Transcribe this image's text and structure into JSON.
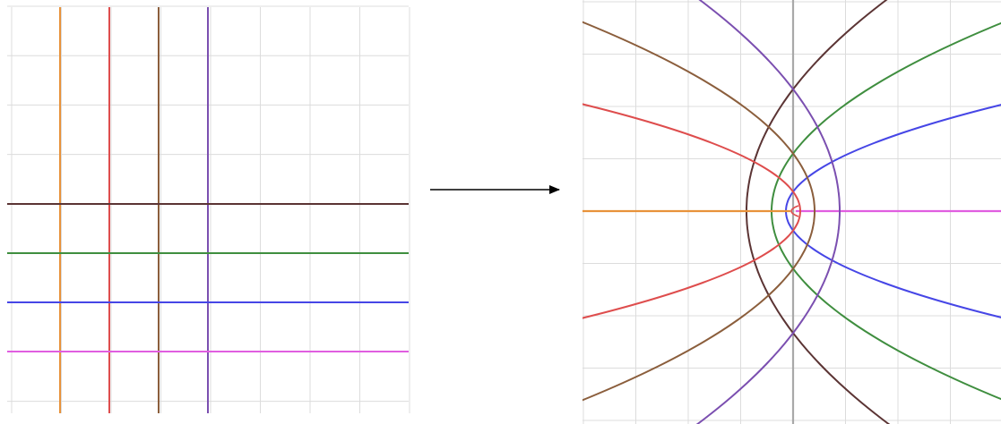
{
  "colors": {
    "background": "#ffffff",
    "grid": "#dcdcdc",
    "axis": "#a9a9a9",
    "arrow": "#000000",
    "orange": "#e8923a",
    "red": "#de4d4d",
    "brown": "#8b5e3c",
    "purple": "#7b4fb0",
    "dark": "#5b3434",
    "green": "#3f8e3f",
    "blue": "#4646e6",
    "magenta": "#e05ee0"
  },
  "diagram": {
    "description_type": "conformal mapping w = z^2 of a rectangular grid",
    "source_plane": {
      "vertical_lines": [
        {
          "name": "vertical-line-orange",
          "color_key": "orange"
        },
        {
          "name": "vertical-line-red",
          "color_key": "red"
        },
        {
          "name": "vertical-line-brown",
          "color_key": "brown"
        },
        {
          "name": "vertical-line-purple",
          "color_key": "purple"
        }
      ],
      "horizontal_lines": [
        {
          "name": "horizontal-line-dark",
          "color_key": "dark"
        },
        {
          "name": "horizontal-line-green",
          "color_key": "green"
        },
        {
          "name": "horizontal-line-blue",
          "color_key": "blue"
        },
        {
          "name": "horizontal-line-magenta",
          "color_key": "magenta"
        }
      ]
    },
    "arrow": {
      "name": "mapping-arrow"
    },
    "target_plane": {
      "left_opening_parabolas": [
        {
          "name": "parabola-left-orange",
          "color_key": "orange"
        },
        {
          "name": "parabola-left-red",
          "color_key": "red"
        },
        {
          "name": "parabola-left-brown",
          "color_key": "brown"
        },
        {
          "name": "parabola-left-purple",
          "color_key": "purple"
        }
      ],
      "right_opening_parabolas": [
        {
          "name": "parabola-right-magenta",
          "color_key": "magenta"
        },
        {
          "name": "parabola-right-blue",
          "color_key": "blue"
        },
        {
          "name": "parabola-right-green",
          "color_key": "green"
        },
        {
          "name": "parabola-right-dark",
          "color_key": "dark"
        }
      ]
    }
  }
}
